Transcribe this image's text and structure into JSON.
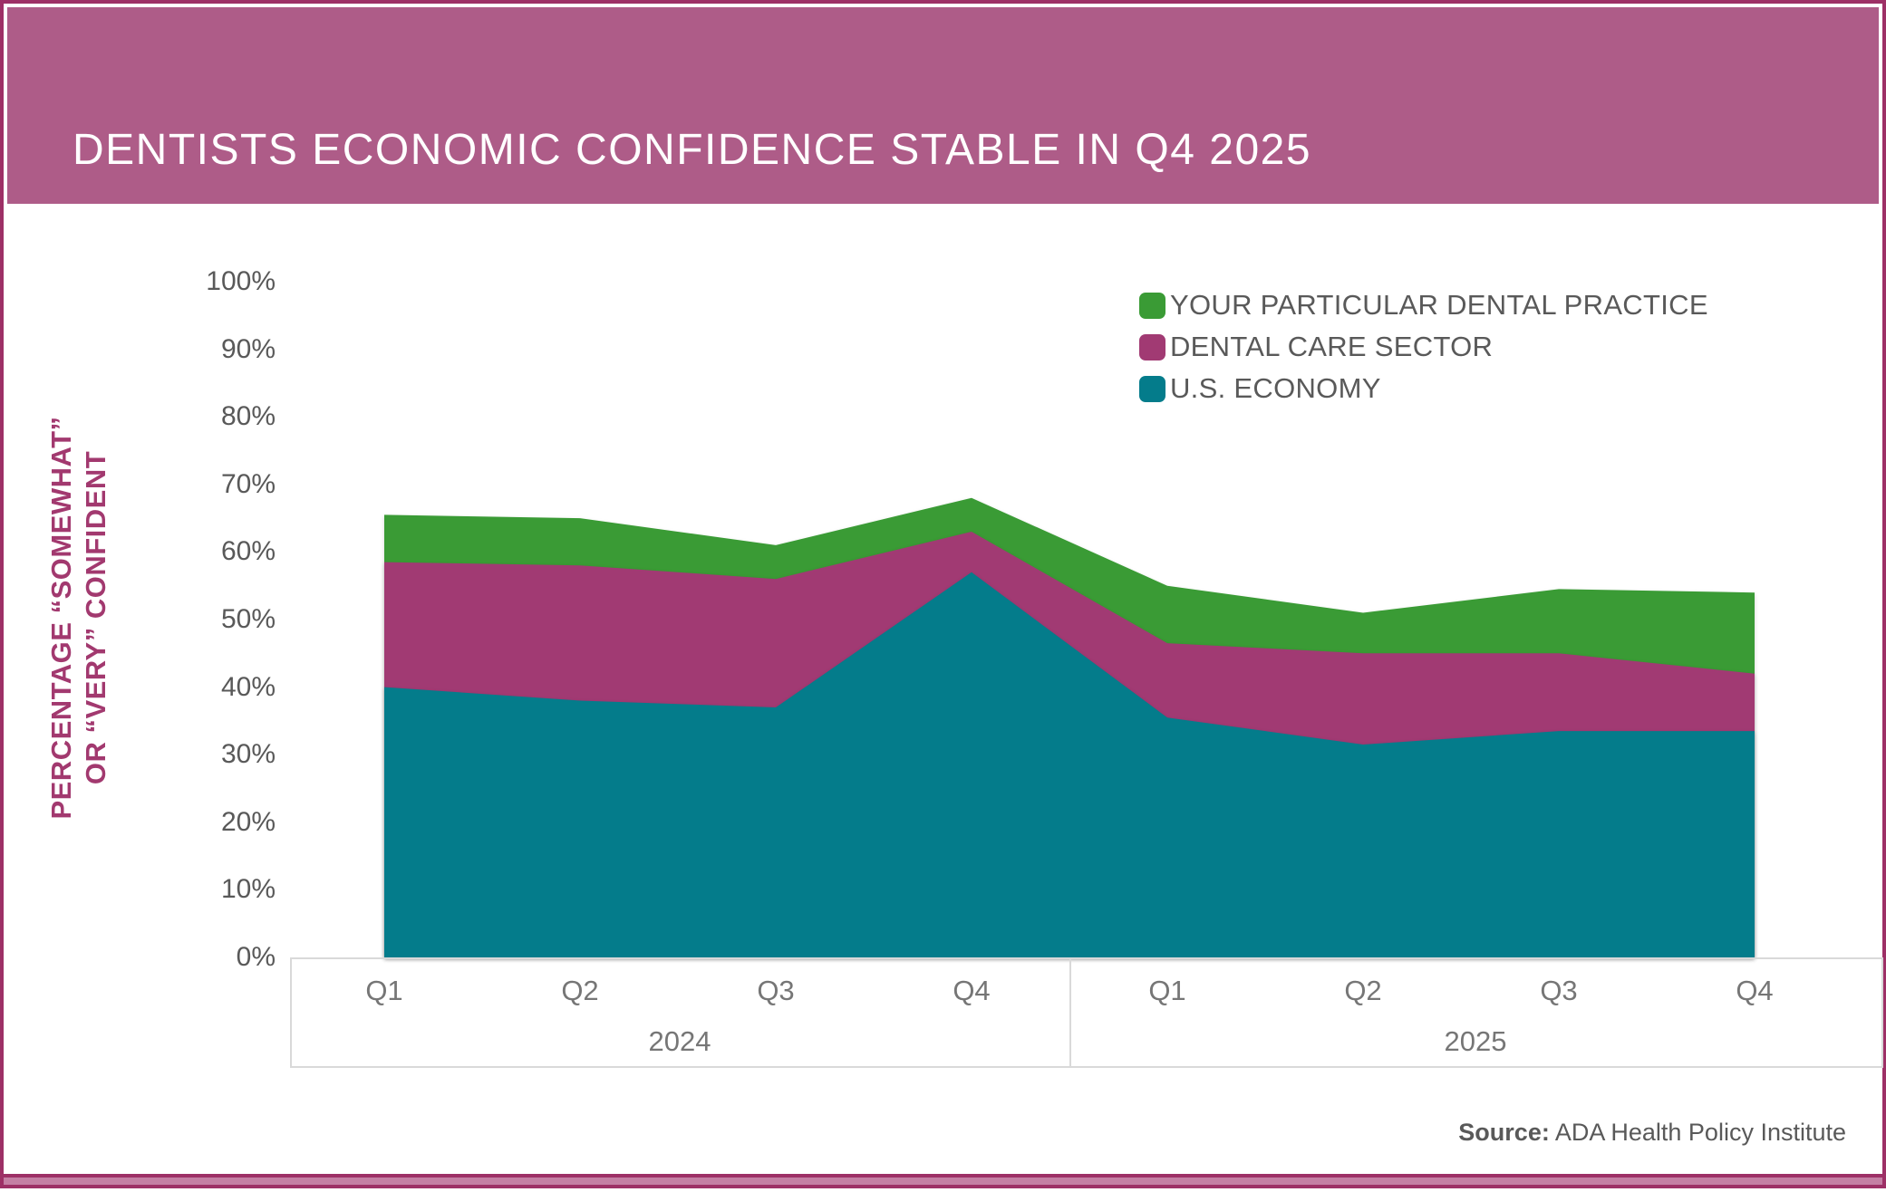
{
  "header": {
    "title": "DENTISTS ECONOMIC CONFIDENCE STABLE IN Q4 2025"
  },
  "y_axis": {
    "title_line1": "PERCENTAGE “SOMEWHAT”",
    "title_line2": "OR “VERY” CONFIDENT",
    "ticks": [
      "100%",
      "90%",
      "80%",
      "70%",
      "60%",
      "50%",
      "40%",
      "30%",
      "20%",
      "10%",
      "0%"
    ]
  },
  "source": {
    "label": "Source:",
    "text": " ADA Health Policy Institute"
  },
  "colors": {
    "header_band": "#AE5C88",
    "frame_border": "#9D3066",
    "bottom_accent": "#C47FA4",
    "practice_green": "#3A9B35",
    "sector_magenta": "#A13A73",
    "economy_teal": "#047C8B",
    "axis_text_gray": "#595959",
    "axis_label_gray": "#767676",
    "axis_line_gray": "#D9D9D9",
    "y_title_magenta": "#A2396F"
  },
  "chart_data": {
    "type": "area",
    "mode": "overlapping",
    "title": "DENTISTS ECONOMIC CONFIDENCE STABLE IN Q4 2025",
    "categories": [
      "Q1 2024",
      "Q2 2024",
      "Q3 2024",
      "Q4 2024",
      "Q1 2025",
      "Q2 2025",
      "Q3 2025",
      "Q4 2025"
    ],
    "quarter_labels": [
      "Q1",
      "Q2",
      "Q3",
      "Q4",
      "Q1",
      "Q2",
      "Q3",
      "Q4"
    ],
    "year_groups": [
      "2024",
      "2025"
    ],
    "series": [
      {
        "name": "YOUR PARTICULAR DENTAL PRACTICE",
        "color": "#3A9B35",
        "values": [
          65.5,
          65,
          61,
          68,
          55,
          51,
          54.5,
          54
        ]
      },
      {
        "name": "DENTAL CARE SECTOR",
        "color": "#A13A73",
        "values": [
          58.5,
          58,
          56,
          63,
          46.5,
          45,
          45,
          42
        ]
      },
      {
        "name": "U.S. ECONOMY",
        "color": "#047C8B",
        "values": [
          40,
          38,
          37,
          57,
          35.5,
          31.5,
          33.5,
          33.5
        ]
      }
    ],
    "ylabel": "PERCENTAGE “SOMEWHAT” OR “VERY” CONFIDENT",
    "ylim": [
      0,
      100
    ],
    "y_tick_step": 10,
    "legend_position": "top-right",
    "grid": false
  }
}
